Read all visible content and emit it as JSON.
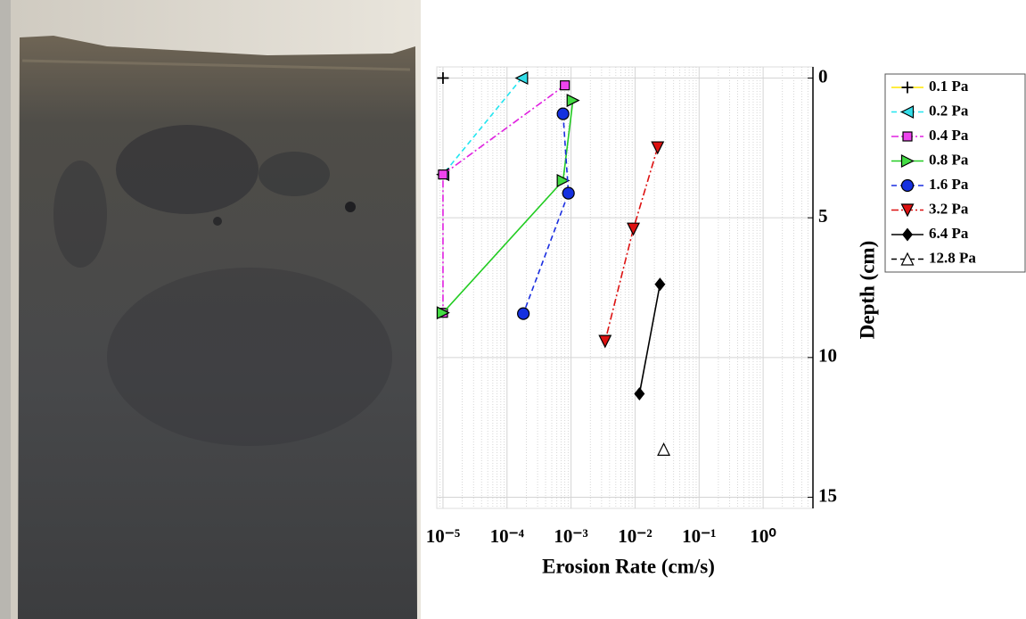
{
  "chart_data": {
    "type": "line",
    "xlabel": "Erosion Rate (cm/s)",
    "ylabel": "Depth (cm)",
    "xscale": "log",
    "y_reversed": true,
    "yaxis_side": "right",
    "grid": true,
    "minor_grid": true,
    "legend": "outside-right",
    "xlim": [
      8e-06,
      6
    ],
    "ylim": [
      -0.4,
      15.4
    ],
    "xticks": [
      {
        "value": 1e-05,
        "label": "10⁻⁵"
      },
      {
        "value": 0.0001,
        "label": "10⁻⁴"
      },
      {
        "value": 0.001,
        "label": "10⁻³"
      },
      {
        "value": 0.01,
        "label": "10⁻²"
      },
      {
        "value": 0.1,
        "label": "10⁻¹"
      },
      {
        "value": 1,
        "label": "10⁰"
      }
    ],
    "yticks": [
      0,
      5,
      10,
      15
    ],
    "series": [
      {
        "name": "0.1 Pa",
        "color": "#ffe600",
        "dash": "solid",
        "marker": "plus",
        "marker_color": "#000000",
        "x": [
          1e-05
        ],
        "values": [
          0
        ]
      },
      {
        "name": "0.2 Pa",
        "color": "#22e5f0",
        "dash": "dashed",
        "marker": "triangle-left",
        "marker_color": "#33dde8",
        "x": [
          0.00017,
          1e-05
        ],
        "values": [
          0,
          3.45
        ]
      },
      {
        "name": "0.4 Pa",
        "color": "#e020e0",
        "dash": "dashdot",
        "marker": "square",
        "marker_color": "#ee44ee",
        "x": [
          0.0008,
          1e-05,
          1e-05
        ],
        "values": [
          0.26,
          3.45,
          8.4
        ]
      },
      {
        "name": "0.8 Pa",
        "color": "#22cc22",
        "dash": "solid",
        "marker": "triangle-right",
        "marker_color": "#44dd44",
        "x": [
          0.00107,
          0.00075,
          1e-05
        ],
        "values": [
          0.8,
          3.67,
          8.4
        ]
      },
      {
        "name": "1.6 Pa",
        "color": "#1a2ee0",
        "dash": "dashed",
        "marker": "circle",
        "marker_color": "#1530e0",
        "x": [
          0.00075,
          0.00091,
          0.00018
        ],
        "values": [
          1.28,
          4.12,
          8.43
        ]
      },
      {
        "name": "3.2 Pa",
        "color": "#dd1111",
        "dash": "dashdot",
        "marker": "triangle-down",
        "marker_color": "#dd1111",
        "x": [
          0.0225,
          0.0094,
          0.0034
        ],
        "values": [
          2.49,
          5.4,
          9.42
        ]
      },
      {
        "name": "6.4 Pa",
        "color": "#000000",
        "dash": "solid",
        "marker": "diamond",
        "marker_color": "#000000",
        "x": [
          0.0245,
          0.0117
        ],
        "values": [
          7.38,
          11.3
        ]
      },
      {
        "name": "12.8 Pa",
        "color": "#000000",
        "dash": "dashed",
        "marker": "triangle-up",
        "marker_color": "#ffffff",
        "x": [
          0.028
        ],
        "values": [
          13.29
        ]
      }
    ]
  }
}
